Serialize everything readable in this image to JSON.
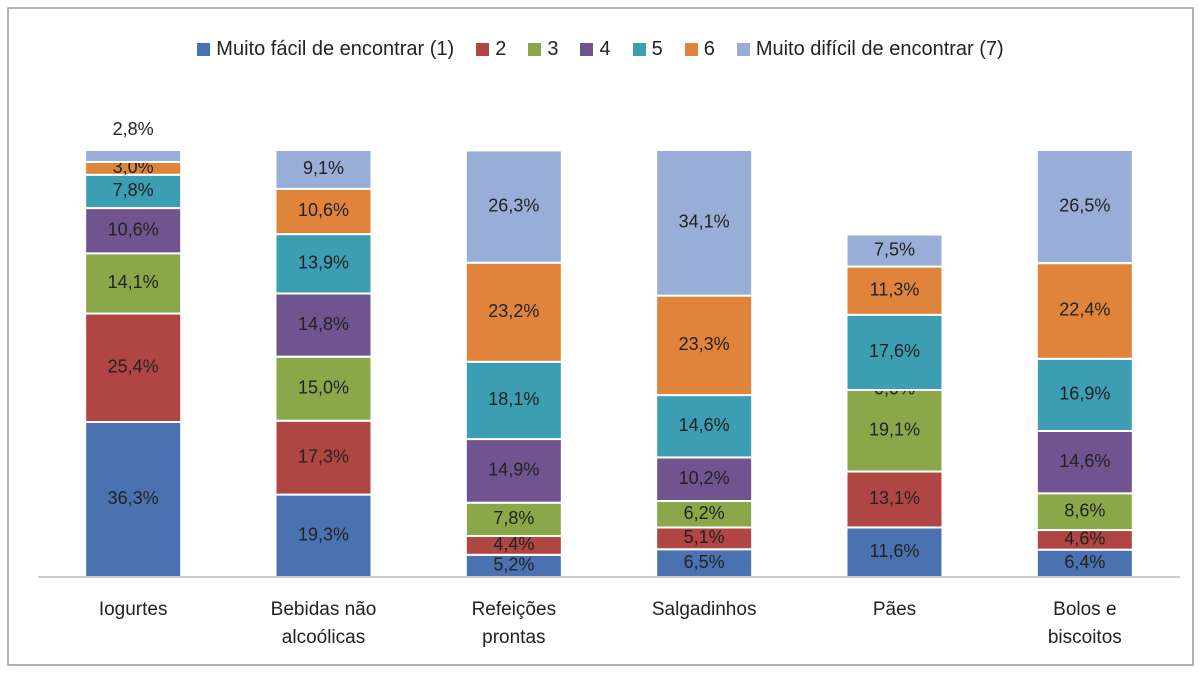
{
  "chart_data": {
    "type": "stacked_bar",
    "categories": [
      "Iogurtes",
      "Bebidas não alcoólicas",
      "Refeições prontas",
      "Salgadinhos",
      "Pães",
      "Bolos e biscoitos"
    ],
    "ylim": [
      0,
      100
    ],
    "series": [
      {
        "name": "Muito fácil de encontrar (1)",
        "color": "#4a72b0",
        "values": [
          36.3,
          19.3,
          5.2,
          6.5,
          11.6,
          6.4
        ],
        "value_labels": [
          "36,3%",
          "19,3%",
          "5,2%",
          "6,5%",
          "11,6%",
          "6,4%"
        ]
      },
      {
        "name": "2",
        "color": "#b04644",
        "values": [
          25.4,
          17.3,
          4.4,
          5.1,
          13.1,
          4.6
        ],
        "value_labels": [
          "25,4%",
          "17,3%",
          "4,4%",
          "5,1%",
          "13,1%",
          "4,6%"
        ]
      },
      {
        "name": "3",
        "color": "#8aa84a",
        "values": [
          14.1,
          15.0,
          7.8,
          6.2,
          19.1,
          8.6
        ],
        "value_labels": [
          "14,1%",
          "15,0%",
          "7,8%",
          "6,2%",
          "19,1%",
          "8,6%"
        ]
      },
      {
        "name": "4",
        "color": "#6f548f",
        "values": [
          10.6,
          14.8,
          14.9,
          10.2,
          0.0,
          14.6
        ],
        "value_labels": [
          "10,6%",
          "14,8%",
          "14,9%",
          "10,2%",
          "0,0%",
          "14,6%"
        ]
      },
      {
        "name": "5",
        "color": "#3d9db3",
        "values": [
          7.8,
          13.9,
          18.1,
          14.6,
          17.6,
          16.9
        ],
        "value_labels": [
          "7,8%",
          "13,9%",
          "18,1%",
          "14,6%",
          "17,6%",
          "16,9%"
        ]
      },
      {
        "name": "6",
        "color": "#e0843c",
        "values": [
          3.0,
          10.6,
          23.2,
          23.3,
          11.3,
          22.4
        ],
        "value_labels": [
          "3,0%",
          "10,6%",
          "23,2%",
          "23,3%",
          "11,3%",
          "22,4%"
        ]
      },
      {
        "name": "Muito difícil de encontrar (7)",
        "color": "#98aed6",
        "values": [
          2.8,
          9.1,
          26.3,
          34.1,
          7.5,
          26.5
        ],
        "value_labels": [
          "2,8%",
          "9,1%",
          "26,3%",
          "34,1%",
          "7,5%",
          "26,5%"
        ]
      }
    ]
  }
}
